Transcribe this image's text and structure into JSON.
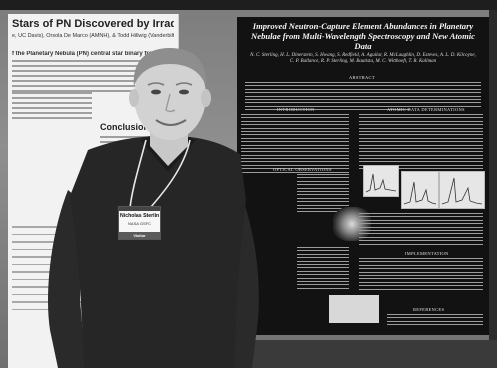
{
  "poster_left": {
    "title": "Stars of PN Discovered by Irradiation Effects",
    "authors": "e, UC Davis), Orsola De Marco (AMNH), & Todd Hillwig (Vanderbilt)",
    "heading": "f the Planetary Nebula (PN) central star binary fraction",
    "conclusions_label": "Conclusions:"
  },
  "poster_dark": {
    "title": "Improved Neutron-Capture Element Abundances in Planetary Nebulae from Multi-Wavelength Spectroscopy and New Atomic Data",
    "authors": "N. C. Sterling, H. L. Dinerstein, S. Hwang, S. Redfield, A. Aguilar, R. McLaughlin, D. Esteves, A. L. D. Kilcoyne, C. P. Ballance, R. P. Sterling, M. Bautista, M. C. Witthoeft, T. R. Kallman",
    "sections": {
      "abstract": "ABSTRACT",
      "introduction": "INTRODUCTION",
      "atomic_data": "ATOMIC DATA DETERMINATIONS",
      "optical": "OPTICAL OBSERVATIONS",
      "implementation": "IMPLEMENTATION",
      "references": "REFERENCES"
    }
  },
  "badge": {
    "name": "Nicholas Sterling",
    "org": "NASA GSFC",
    "role": "Visitor"
  },
  "colors": {
    "shirt": "#262626",
    "poster_dark": "#121212",
    "poster_left": "#f2f2f2"
  }
}
